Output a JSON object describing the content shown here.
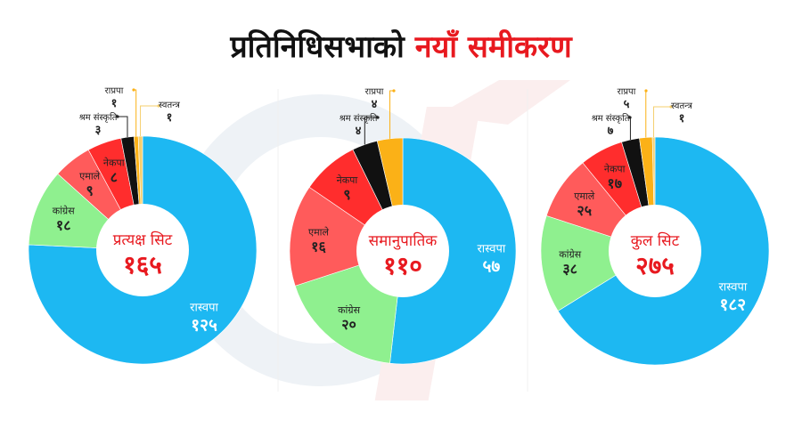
{
  "title": {
    "main": "प्रतिनिधिसभाको",
    "accent": "नयाँ समीकरण"
  },
  "colors": {
    "rswapa": "#1db8f2",
    "congress": "#8ff08f",
    "emale": "#ff5b5b",
    "nekapa": "#ff2d2d",
    "shram": "#111111",
    "rapapa": "#fbb117",
    "swatantra": "#f5cf6e",
    "center_text": "#e8191f"
  },
  "chart_data": [
    {
      "type": "pie",
      "center": {
        "label": "प्रत्यक्ष सिट",
        "value": "१६५"
      },
      "total": 165,
      "slices": [
        {
          "key": "rswapa",
          "name": "रास्वपा",
          "display": "१२५",
          "value": 125
        },
        {
          "key": "congress",
          "name": "कांग्रेस",
          "display": "१८",
          "value": 18
        },
        {
          "key": "emale",
          "name": "एमाले",
          "display": "९",
          "value": 9
        },
        {
          "key": "nekapa",
          "name": "नेकपा",
          "display": "८",
          "value": 8
        },
        {
          "key": "shram",
          "name": "श्रम संस्कृति",
          "display": "३",
          "value": 3
        },
        {
          "key": "rapapa",
          "name": "राप्रपा",
          "display": "१",
          "value": 1
        },
        {
          "key": "swatantra",
          "name": "स्वतन्त्र",
          "display": "१",
          "value": 1
        }
      ]
    },
    {
      "type": "pie",
      "center": {
        "label": "समानुपातिक",
        "value": "११०"
      },
      "total": 110,
      "slices": [
        {
          "key": "rswapa",
          "name": "रास्वपा",
          "display": "५७",
          "value": 57
        },
        {
          "key": "congress",
          "name": "कांग्रेस",
          "display": "२०",
          "value": 20
        },
        {
          "key": "emale",
          "name": "एमाले",
          "display": "१६",
          "value": 16
        },
        {
          "key": "nekapa",
          "name": "नेकपा",
          "display": "९",
          "value": 9
        },
        {
          "key": "shram",
          "name": "श्रम संस्कृति",
          "display": "४",
          "value": 4
        },
        {
          "key": "rapapa",
          "name": "राप्रपा",
          "display": "४",
          "value": 4
        }
      ]
    },
    {
      "type": "pie",
      "center": {
        "label": "कुल सिट",
        "value": "२७५"
      },
      "total": 275,
      "slices": [
        {
          "key": "rswapa",
          "name": "रास्वपा",
          "display": "१८२",
          "value": 182
        },
        {
          "key": "congress",
          "name": "कांग्रेस",
          "display": "३८",
          "value": 38
        },
        {
          "key": "emale",
          "name": "एमाले",
          "display": "२५",
          "value": 25
        },
        {
          "key": "nekapa",
          "name": "नेकपा",
          "display": "१७",
          "value": 17
        },
        {
          "key": "shram",
          "name": "श्रम संस्कृति",
          "display": "७",
          "value": 7
        },
        {
          "key": "rapapa",
          "name": "राप्रपा",
          "display": "५",
          "value": 5
        },
        {
          "key": "swatantra",
          "name": "स्वतन्त्र",
          "display": "१",
          "value": 1
        }
      ]
    }
  ]
}
